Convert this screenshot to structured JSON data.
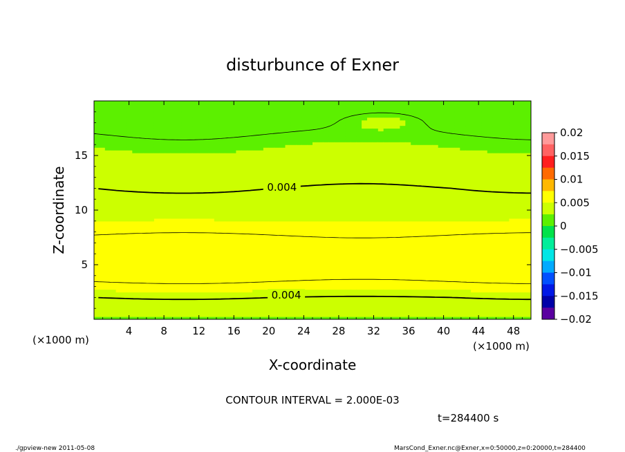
{
  "chart_data": {
    "type": "heatmap",
    "title": "disturbunce of Exner",
    "xlabel": "X-coordinate",
    "ylabel": "Z-coordinate",
    "x_unit": "(×1000 m)",
    "z_unit": "(×1000 m)",
    "xlim": [
      0,
      50
    ],
    "ylim": [
      0,
      20
    ],
    "x_ticks": [
      4,
      8,
      12,
      16,
      20,
      24,
      28,
      32,
      36,
      40,
      44,
      48
    ],
    "y_ticks": [
      5,
      10,
      15
    ],
    "colorbar": {
      "ticks": [
        "0.02",
        "0.015",
        "0.01",
        "0.005",
        "0",
        "−0.005",
        "−0.01",
        "−0.015",
        "−0.02"
      ],
      "range": [
        -0.02,
        0.02
      ],
      "levels": [
        {
          "from": 0.0175,
          "to": 0.02,
          "color": "#ff9a9a"
        },
        {
          "from": 0.015,
          "to": 0.0175,
          "color": "#ff6262"
        },
        {
          "from": 0.0125,
          "to": 0.015,
          "color": "#ff1e1e"
        },
        {
          "from": 0.01,
          "to": 0.0125,
          "color": "#ff6a00"
        },
        {
          "from": 0.0075,
          "to": 0.01,
          "color": "#ffb800"
        },
        {
          "from": 0.005,
          "to": 0.0075,
          "color": "#ffff00"
        },
        {
          "from": 0.0025,
          "to": 0.005,
          "color": "#ccff00"
        },
        {
          "from": 0.0,
          "to": 0.0025,
          "color": "#5cf000"
        },
        {
          "from": -0.0025,
          "to": 0.0,
          "color": "#00e24a"
        },
        {
          "from": -0.005,
          "to": -0.0025,
          "color": "#00ee9a"
        },
        {
          "from": -0.0075,
          "to": -0.005,
          "color": "#00e6e6"
        },
        {
          "from": -0.01,
          "to": -0.0075,
          "color": "#00aaff"
        },
        {
          "from": -0.0125,
          "to": -0.01,
          "color": "#0050ff"
        },
        {
          "from": -0.015,
          "to": -0.0125,
          "color": "#0018e6"
        },
        {
          "from": -0.0175,
          "to": -0.015,
          "color": "#0000a8"
        },
        {
          "from": -0.02,
          "to": -0.0175,
          "color": "#5a00a0"
        }
      ]
    },
    "profile": [
      {
        "z": 0.0,
        "value": 0.0022
      },
      {
        "z": 0.6,
        "value": 0.0028
      },
      {
        "z": 1.2,
        "value": 0.0034
      },
      {
        "z": 2.0,
        "value": 0.004
      },
      {
        "z": 3.0,
        "value": 0.0055
      },
      {
        "z": 4.0,
        "value": 0.0066
      },
      {
        "z": 5.0,
        "value": 0.007
      },
      {
        "z": 6.0,
        "value": 0.0069
      },
      {
        "z": 7.0,
        "value": 0.0065
      },
      {
        "z": 8.0,
        "value": 0.0058
      },
      {
        "z": 9.0,
        "value": 0.005
      },
      {
        "z": 10.0,
        "value": 0.0045
      },
      {
        "z": 12.0,
        "value": 0.004
      },
      {
        "z": 14.0,
        "value": 0.0032
      },
      {
        "z": 16.0,
        "value": 0.0024
      },
      {
        "z": 18.0,
        "value": 0.0016
      },
      {
        "z": 20.0,
        "value": 0.001
      }
    ],
    "contour_labels": [
      {
        "text": "0.004",
        "x": 21.5,
        "z": 12.1
      },
      {
        "text": "0.004",
        "x": 22.0,
        "z": 2.2
      }
    ],
    "contour_interval_text": "CONTOUR INTERVAL = 2.000E-03",
    "time_text": "t=284400 s"
  },
  "footer": {
    "left": "./gpview-new   2011-05-08",
    "right": "MarsCond_Exner.nc@Exner,x=0:50000,z=0:20000,t=284400"
  }
}
